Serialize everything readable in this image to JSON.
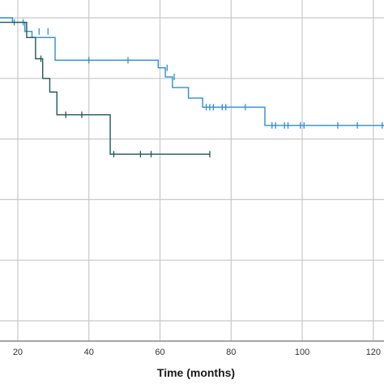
{
  "chart_data": {
    "type": "line",
    "step": true,
    "xlabel": "Time (months)",
    "ylabel": "",
    "xlim": [
      15,
      123
    ],
    "ylim": [
      0.0,
      1.0
    ],
    "x_ticks": [
      20,
      40,
      60,
      80,
      100,
      120
    ],
    "x_tick_labels": [
      "20",
      "40",
      "60",
      "80",
      "100",
      "120"
    ],
    "y_grid": [
      0.0,
      0.2,
      0.4,
      0.6,
      0.8,
      1.0
    ],
    "grid": true,
    "series": [
      {
        "color": "#2b8fd0",
        "steps": [
          [
            15,
            1.0
          ],
          [
            18.5,
            0.985
          ],
          [
            22,
            0.955
          ],
          [
            24,
            0.935
          ],
          [
            30.5,
            0.86
          ],
          [
            59.5,
            0.835
          ],
          [
            61.5,
            0.805
          ],
          [
            63.5,
            0.77
          ],
          [
            68,
            0.735
          ],
          [
            72,
            0.705
          ],
          [
            89.5,
            0.645
          ],
          [
            123,
            0.645
          ]
        ],
        "censored": [
          [
            19,
            0.985
          ],
          [
            21.5,
            0.985
          ],
          [
            26,
            0.955
          ],
          [
            28.5,
            0.955
          ],
          [
            40,
            0.86
          ],
          [
            51,
            0.86
          ],
          [
            62,
            0.835
          ],
          [
            64,
            0.805
          ],
          [
            73,
            0.705
          ],
          [
            74,
            0.705
          ],
          [
            75,
            0.705
          ],
          [
            77.5,
            0.705
          ],
          [
            78.5,
            0.705
          ],
          [
            84,
            0.705
          ],
          [
            91.5,
            0.645
          ],
          [
            92.5,
            0.645
          ],
          [
            95,
            0.645
          ],
          [
            96,
            0.645
          ],
          [
            99.5,
            0.645
          ],
          [
            100.5,
            0.645
          ],
          [
            110,
            0.645
          ],
          [
            115.5,
            0.645
          ],
          [
            122.5,
            0.645
          ]
        ]
      },
      {
        "color": "#1f5a52",
        "steps": [
          [
            15,
            0.985
          ],
          [
            22.5,
            0.935
          ],
          [
            25,
            0.865
          ],
          [
            27,
            0.8
          ],
          [
            29,
            0.755
          ],
          [
            31,
            0.68
          ],
          [
            46,
            0.55
          ],
          [
            74,
            0.55
          ]
        ],
        "censored": [
          [
            26.5,
            0.865
          ],
          [
            33.5,
            0.68
          ],
          [
            38,
            0.68
          ],
          [
            47,
            0.55
          ],
          [
            54.5,
            0.55
          ],
          [
            57.5,
            0.55
          ],
          [
            74,
            0.55
          ]
        ]
      }
    ]
  }
}
